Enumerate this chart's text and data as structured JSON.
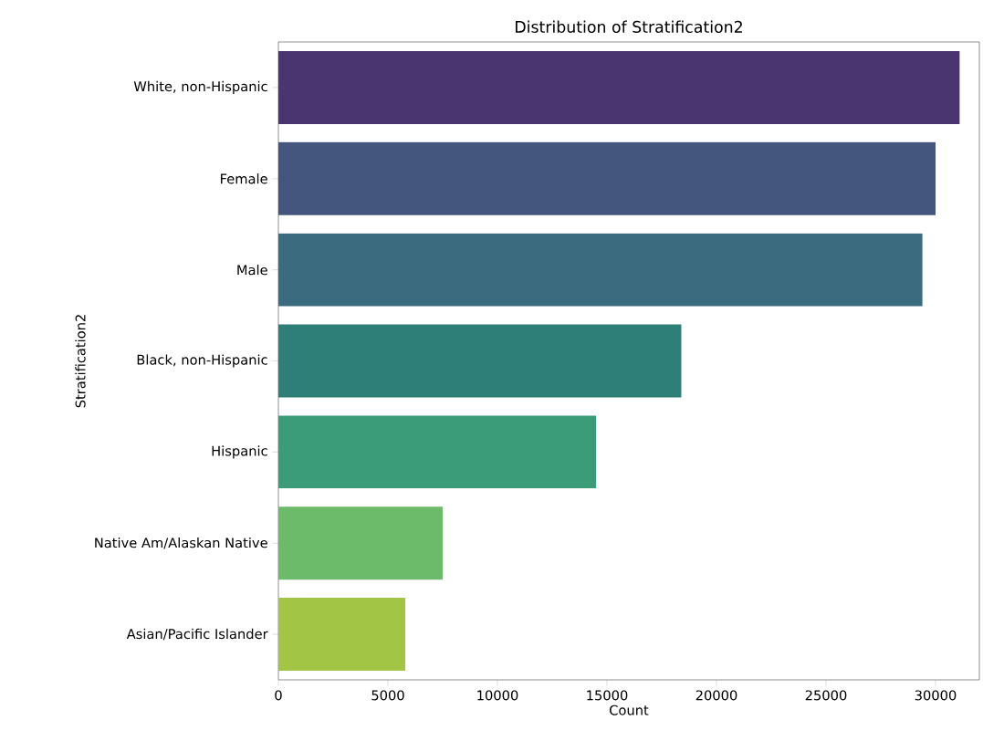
{
  "chart_data": {
    "type": "bar",
    "orientation": "horizontal",
    "title": "Distribution of Stratification2",
    "xlabel": "Count",
    "ylabel": "Stratification2",
    "categories": [
      "White, non-Hispanic",
      "Female",
      "Male",
      "Black, non-Hispanic",
      "Hispanic",
      "Native Am/Alaskan Native",
      "Asian/Pacific Islander"
    ],
    "values": [
      31100,
      30000,
      29400,
      18400,
      14500,
      7500,
      5800
    ],
    "colors": [
      "#4b3570",
      "#45567e",
      "#3a6b7e",
      "#2d7f78",
      "#3a9c79",
      "#6cbb6a",
      "#a2c546"
    ],
    "xlim": [
      0,
      32000
    ],
    "xticks": [
      0,
      5000,
      10000,
      15000,
      20000,
      25000,
      30000
    ]
  }
}
